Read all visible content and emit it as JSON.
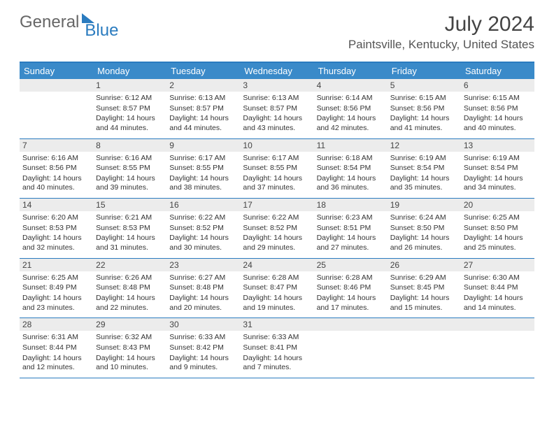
{
  "brand": {
    "part1": "General",
    "part2": "Blue"
  },
  "title": "July 2024",
  "location": "Paintsville, Kentucky, United States",
  "day_names": [
    "Sunday",
    "Monday",
    "Tuesday",
    "Wednesday",
    "Thursday",
    "Friday",
    "Saturday"
  ],
  "style": {
    "header_bg": "#3a8ac9",
    "border_color": "#2a7bbf",
    "daynum_bg": "#ececec",
    "page_bg": "#ffffff"
  },
  "weeks": [
    [
      {
        "day": "",
        "sunrise": "",
        "sunset": "",
        "daylight": ""
      },
      {
        "day": "1",
        "sunrise": "Sunrise: 6:12 AM",
        "sunset": "Sunset: 8:57 PM",
        "daylight": "Daylight: 14 hours and 44 minutes."
      },
      {
        "day": "2",
        "sunrise": "Sunrise: 6:13 AM",
        "sunset": "Sunset: 8:57 PM",
        "daylight": "Daylight: 14 hours and 44 minutes."
      },
      {
        "day": "3",
        "sunrise": "Sunrise: 6:13 AM",
        "sunset": "Sunset: 8:57 PM",
        "daylight": "Daylight: 14 hours and 43 minutes."
      },
      {
        "day": "4",
        "sunrise": "Sunrise: 6:14 AM",
        "sunset": "Sunset: 8:56 PM",
        "daylight": "Daylight: 14 hours and 42 minutes."
      },
      {
        "day": "5",
        "sunrise": "Sunrise: 6:15 AM",
        "sunset": "Sunset: 8:56 PM",
        "daylight": "Daylight: 14 hours and 41 minutes."
      },
      {
        "day": "6",
        "sunrise": "Sunrise: 6:15 AM",
        "sunset": "Sunset: 8:56 PM",
        "daylight": "Daylight: 14 hours and 40 minutes."
      }
    ],
    [
      {
        "day": "7",
        "sunrise": "Sunrise: 6:16 AM",
        "sunset": "Sunset: 8:56 PM",
        "daylight": "Daylight: 14 hours and 40 minutes."
      },
      {
        "day": "8",
        "sunrise": "Sunrise: 6:16 AM",
        "sunset": "Sunset: 8:55 PM",
        "daylight": "Daylight: 14 hours and 39 minutes."
      },
      {
        "day": "9",
        "sunrise": "Sunrise: 6:17 AM",
        "sunset": "Sunset: 8:55 PM",
        "daylight": "Daylight: 14 hours and 38 minutes."
      },
      {
        "day": "10",
        "sunrise": "Sunrise: 6:17 AM",
        "sunset": "Sunset: 8:55 PM",
        "daylight": "Daylight: 14 hours and 37 minutes."
      },
      {
        "day": "11",
        "sunrise": "Sunrise: 6:18 AM",
        "sunset": "Sunset: 8:54 PM",
        "daylight": "Daylight: 14 hours and 36 minutes."
      },
      {
        "day": "12",
        "sunrise": "Sunrise: 6:19 AM",
        "sunset": "Sunset: 8:54 PM",
        "daylight": "Daylight: 14 hours and 35 minutes."
      },
      {
        "day": "13",
        "sunrise": "Sunrise: 6:19 AM",
        "sunset": "Sunset: 8:54 PM",
        "daylight": "Daylight: 14 hours and 34 minutes."
      }
    ],
    [
      {
        "day": "14",
        "sunrise": "Sunrise: 6:20 AM",
        "sunset": "Sunset: 8:53 PM",
        "daylight": "Daylight: 14 hours and 32 minutes."
      },
      {
        "day": "15",
        "sunrise": "Sunrise: 6:21 AM",
        "sunset": "Sunset: 8:53 PM",
        "daylight": "Daylight: 14 hours and 31 minutes."
      },
      {
        "day": "16",
        "sunrise": "Sunrise: 6:22 AM",
        "sunset": "Sunset: 8:52 PM",
        "daylight": "Daylight: 14 hours and 30 minutes."
      },
      {
        "day": "17",
        "sunrise": "Sunrise: 6:22 AM",
        "sunset": "Sunset: 8:52 PM",
        "daylight": "Daylight: 14 hours and 29 minutes."
      },
      {
        "day": "18",
        "sunrise": "Sunrise: 6:23 AM",
        "sunset": "Sunset: 8:51 PM",
        "daylight": "Daylight: 14 hours and 27 minutes."
      },
      {
        "day": "19",
        "sunrise": "Sunrise: 6:24 AM",
        "sunset": "Sunset: 8:50 PM",
        "daylight": "Daylight: 14 hours and 26 minutes."
      },
      {
        "day": "20",
        "sunrise": "Sunrise: 6:25 AM",
        "sunset": "Sunset: 8:50 PM",
        "daylight": "Daylight: 14 hours and 25 minutes."
      }
    ],
    [
      {
        "day": "21",
        "sunrise": "Sunrise: 6:25 AM",
        "sunset": "Sunset: 8:49 PM",
        "daylight": "Daylight: 14 hours and 23 minutes."
      },
      {
        "day": "22",
        "sunrise": "Sunrise: 6:26 AM",
        "sunset": "Sunset: 8:48 PM",
        "daylight": "Daylight: 14 hours and 22 minutes."
      },
      {
        "day": "23",
        "sunrise": "Sunrise: 6:27 AM",
        "sunset": "Sunset: 8:48 PM",
        "daylight": "Daylight: 14 hours and 20 minutes."
      },
      {
        "day": "24",
        "sunrise": "Sunrise: 6:28 AM",
        "sunset": "Sunset: 8:47 PM",
        "daylight": "Daylight: 14 hours and 19 minutes."
      },
      {
        "day": "25",
        "sunrise": "Sunrise: 6:28 AM",
        "sunset": "Sunset: 8:46 PM",
        "daylight": "Daylight: 14 hours and 17 minutes."
      },
      {
        "day": "26",
        "sunrise": "Sunrise: 6:29 AM",
        "sunset": "Sunset: 8:45 PM",
        "daylight": "Daylight: 14 hours and 15 minutes."
      },
      {
        "day": "27",
        "sunrise": "Sunrise: 6:30 AM",
        "sunset": "Sunset: 8:44 PM",
        "daylight": "Daylight: 14 hours and 14 minutes."
      }
    ],
    [
      {
        "day": "28",
        "sunrise": "Sunrise: 6:31 AM",
        "sunset": "Sunset: 8:44 PM",
        "daylight": "Daylight: 14 hours and 12 minutes."
      },
      {
        "day": "29",
        "sunrise": "Sunrise: 6:32 AM",
        "sunset": "Sunset: 8:43 PM",
        "daylight": "Daylight: 14 hours and 10 minutes."
      },
      {
        "day": "30",
        "sunrise": "Sunrise: 6:33 AM",
        "sunset": "Sunset: 8:42 PM",
        "daylight": "Daylight: 14 hours and 9 minutes."
      },
      {
        "day": "31",
        "sunrise": "Sunrise: 6:33 AM",
        "sunset": "Sunset: 8:41 PM",
        "daylight": "Daylight: 14 hours and 7 minutes."
      },
      {
        "day": "",
        "sunrise": "",
        "sunset": "",
        "daylight": ""
      },
      {
        "day": "",
        "sunrise": "",
        "sunset": "",
        "daylight": ""
      },
      {
        "day": "",
        "sunrise": "",
        "sunset": "",
        "daylight": ""
      }
    ]
  ]
}
